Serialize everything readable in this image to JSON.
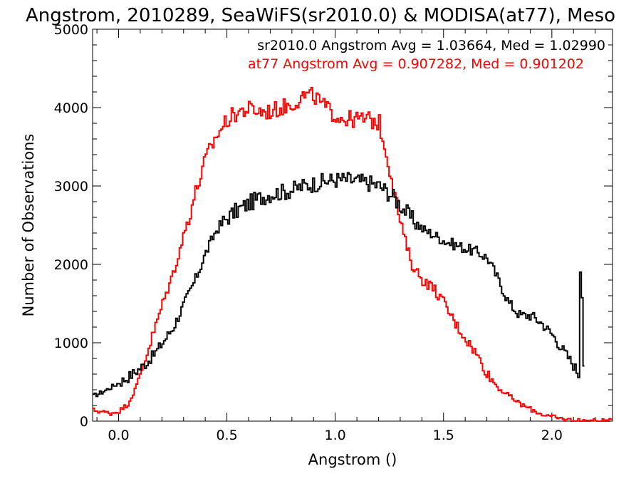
{
  "chart_data": {
    "type": "line",
    "title": "Angstrom, 2010289, SeaWiFS(sr2010.0) & MODISA(at77), Meso",
    "xlabel": "Angstrom ()",
    "ylabel": "Number of Observations",
    "xlim": [
      -0.12,
      2.28
    ],
    "ylim": [
      0,
      5000
    ],
    "xticks": [
      0.0,
      0.5,
      1.0,
      1.5,
      2.0
    ],
    "xtick_labels": [
      "0.0",
      "0.5",
      "1.0",
      "1.5",
      "2.0"
    ],
    "yticks": [
      0,
      1000,
      2000,
      3000,
      4000,
      5000
    ],
    "ytick_labels": [
      "0",
      "1000",
      "2000",
      "3000",
      "4000",
      "5000"
    ],
    "grid": false,
    "step": true,
    "annotations": [
      {
        "text": "sr2010.0 Angstrom Avg = 1.03664, Med = 1.02990",
        "color": "#000000"
      },
      {
        "text": "at77 Angstrom Avg = 0.907282, Med = 0.901202",
        "color": "#ff0000"
      }
    ],
    "series": [
      {
        "color": "#000000",
        "x": [
          -0.12,
          -0.08,
          -0.04,
          0.0,
          0.04,
          0.08,
          0.12,
          0.16,
          0.2,
          0.25,
          0.3,
          0.35,
          0.4,
          0.45,
          0.5,
          0.55,
          0.6,
          0.65,
          0.7,
          0.75,
          0.8,
          0.85,
          0.9,
          0.95,
          1.0,
          1.05,
          1.1,
          1.15,
          1.2,
          1.25,
          1.3,
          1.35,
          1.4,
          1.45,
          1.5,
          1.55,
          1.6,
          1.65,
          1.7,
          1.75,
          1.8,
          1.85,
          1.9,
          1.95,
          2.0,
          2.05,
          2.1,
          2.12,
          2.13,
          2.14,
          2.15
        ],
        "y": [
          320,
          370,
          430,
          490,
          560,
          640,
          730,
          850,
          1000,
          1200,
          1500,
          1800,
          2150,
          2450,
          2600,
          2700,
          2780,
          2850,
          2900,
          2920,
          2950,
          3000,
          3030,
          3060,
          3080,
          3080,
          3060,
          3040,
          3000,
          2900,
          2750,
          2580,
          2450,
          2380,
          2300,
          2250,
          2200,
          2160,
          2080,
          1800,
          1500,
          1350,
          1350,
          1250,
          1100,
          900,
          700,
          600,
          2280,
          1220,
          0
        ]
      },
      {
        "color": "#ff0000",
        "x": [
          -0.12,
          -0.08,
          -0.04,
          0.0,
          0.04,
          0.08,
          0.12,
          0.16,
          0.2,
          0.25,
          0.3,
          0.35,
          0.4,
          0.45,
          0.5,
          0.55,
          0.6,
          0.65,
          0.7,
          0.75,
          0.8,
          0.85,
          0.9,
          0.95,
          1.0,
          1.05,
          1.1,
          1.15,
          1.2,
          1.25,
          1.3,
          1.35,
          1.4,
          1.45,
          1.5,
          1.55,
          1.6,
          1.65,
          1.7,
          1.75,
          1.8,
          1.85,
          1.9,
          1.95,
          2.0,
          2.05,
          2.1,
          2.15,
          2.28
        ],
        "y": [
          140,
          120,
          100,
          130,
          220,
          450,
          800,
          1150,
          1500,
          1900,
          2400,
          2900,
          3350,
          3650,
          3850,
          3950,
          3980,
          3950,
          3950,
          4000,
          4050,
          4150,
          4150,
          4000,
          3900,
          3850,
          3850,
          3850,
          3800,
          3200,
          2500,
          2000,
          1800,
          1700,
          1500,
          1250,
          1050,
          850,
          600,
          420,
          320,
          220,
          150,
          90,
          50,
          25,
          10,
          5,
          0
        ]
      }
    ]
  }
}
